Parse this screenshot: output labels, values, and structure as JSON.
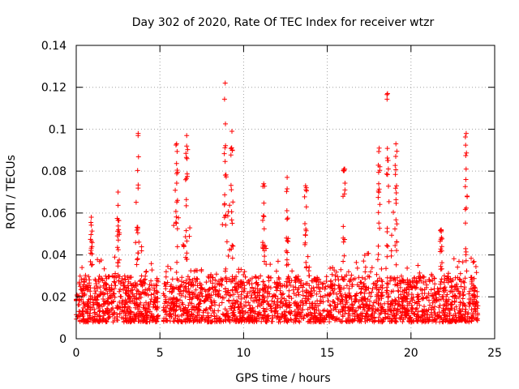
{
  "chart_data": {
    "type": "scatter",
    "title": "Day 302 of 2020, Rate Of TEC Index for receiver wtzr",
    "xlabel": "GPS time / hours",
    "ylabel": "ROTI / TECUs",
    "xlim": [
      0,
      25
    ],
    "ylim": [
      0,
      0.14
    ],
    "xticks": [
      0,
      5,
      10,
      15,
      20,
      25
    ],
    "xtick_labels": [
      "0",
      "5",
      "10",
      "15",
      "20",
      "25"
    ],
    "yticks": [
      0,
      0.02,
      0.04,
      0.06,
      0.08,
      0.1,
      0.12,
      0.14
    ],
    "ytick_labels": [
      "0",
      "0.02",
      "0.04",
      "0.06",
      "0.08",
      "0.1",
      "0.12",
      "0.14"
    ],
    "grid": true,
    "marker": "+",
    "marker_color": "#ff0000",
    "series": [
      {
        "name": "ROTI",
        "time_range_hours": [
          0,
          24
        ],
        "data_gap_hours": [
          [
            4.9,
            5.2
          ]
        ],
        "typical_band": [
          0.008,
          0.03
        ],
        "notable_peaks": [
          {
            "x": 0.9,
            "y": 0.058
          },
          {
            "x": 2.5,
            "y": 0.07
          },
          {
            "x": 3.7,
            "y": 0.098
          },
          {
            "x": 6.0,
            "y": 0.093
          },
          {
            "x": 6.6,
            "y": 0.097
          },
          {
            "x": 8.9,
            "y": 0.122
          },
          {
            "x": 9.3,
            "y": 0.099
          },
          {
            "x": 11.2,
            "y": 0.074
          },
          {
            "x": 12.6,
            "y": 0.077
          },
          {
            "x": 13.7,
            "y": 0.073
          },
          {
            "x": 16.0,
            "y": 0.081
          },
          {
            "x": 18.1,
            "y": 0.091
          },
          {
            "x": 18.6,
            "y": 0.117
          },
          {
            "x": 19.1,
            "y": 0.093
          },
          {
            "x": 21.8,
            "y": 0.052
          },
          {
            "x": 23.3,
            "y": 0.098
          }
        ]
      }
    ]
  }
}
